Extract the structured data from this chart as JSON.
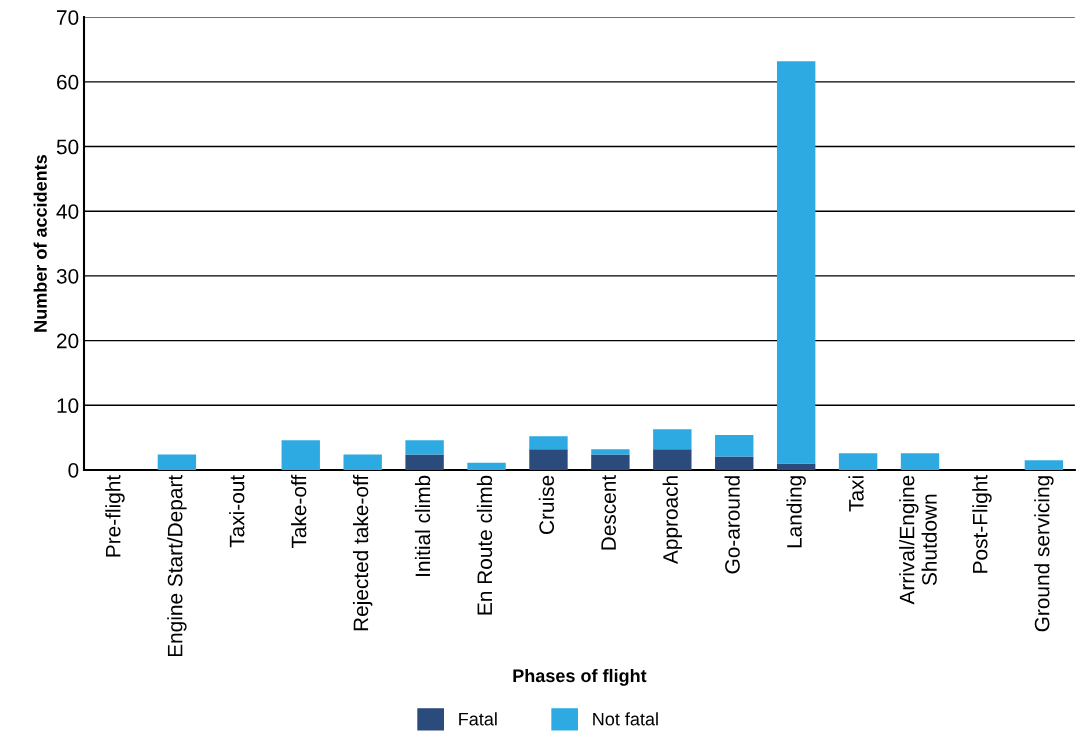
{
  "chart_data": {
    "type": "bar",
    "stacked": true,
    "xlabel": "Phases of flight",
    "ylabel": "Number of accidents",
    "categories": [
      "Pre-flight",
      "Engine Start/Depart",
      "Taxi-out",
      "Take-off",
      "Rejected take-off",
      "Initial climb",
      "En Route climb",
      "Cruise",
      "Descent",
      "Approach",
      "Go-around",
      "Landing",
      "Taxi",
      "Arrival/Engine\nShutdown",
      "Post-Flight",
      "Ground servicing"
    ],
    "series": [
      {
        "name": "Fatal",
        "color": "#2a4b7c",
        "values": [
          0,
          0,
          0,
          0,
          0,
          2.4,
          0,
          3.2,
          2.4,
          3.2,
          2.1,
          1.0,
          0,
          0,
          0,
          0
        ]
      },
      {
        "name": "Not fatal",
        "color": "#2eaae2",
        "values": [
          0,
          2.4,
          0,
          4.6,
          2.4,
          2.2,
          1.1,
          2.0,
          0.8,
          3.1,
          3.3,
          62.2,
          2.6,
          2.6,
          0,
          1.5
        ]
      }
    ],
    "ylim": [
      0,
      70
    ],
    "yticks": [
      0,
      10,
      20,
      30,
      40,
      50,
      60,
      70
    ],
    "grid": "y",
    "legend": "bottom"
  }
}
